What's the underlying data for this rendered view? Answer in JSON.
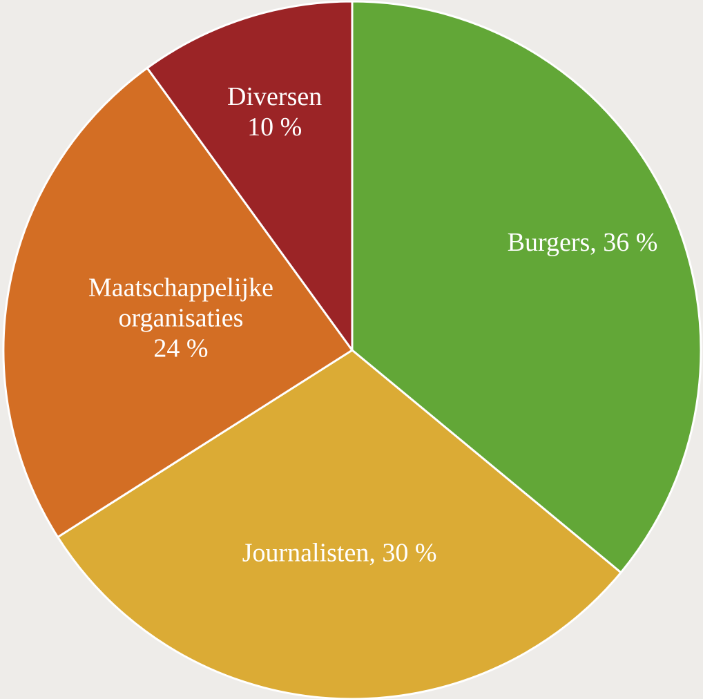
{
  "chart_data": {
    "type": "pie",
    "title": "",
    "slices": [
      {
        "name": "Burgers",
        "value": 36,
        "label_lines": [
          "Burgers, 36 %"
        ],
        "color": "#62a737"
      },
      {
        "name": "Journalisten",
        "value": 30,
        "label_lines": [
          "Journalisten, 30 %"
        ],
        "color": "#dbab35"
      },
      {
        "name": "Maatschappelijke organisaties",
        "value": 24,
        "label_lines": [
          "Maatschappelijke",
          "organisaties",
          "24 %"
        ],
        "color": "#d36e24"
      },
      {
        "name": "Diversen",
        "value": 10,
        "label_lines": [
          "Diversen",
          "10 %"
        ],
        "color": "#9b2426"
      }
    ],
    "legend": "none",
    "slice_border_color": "#ffffff"
  }
}
